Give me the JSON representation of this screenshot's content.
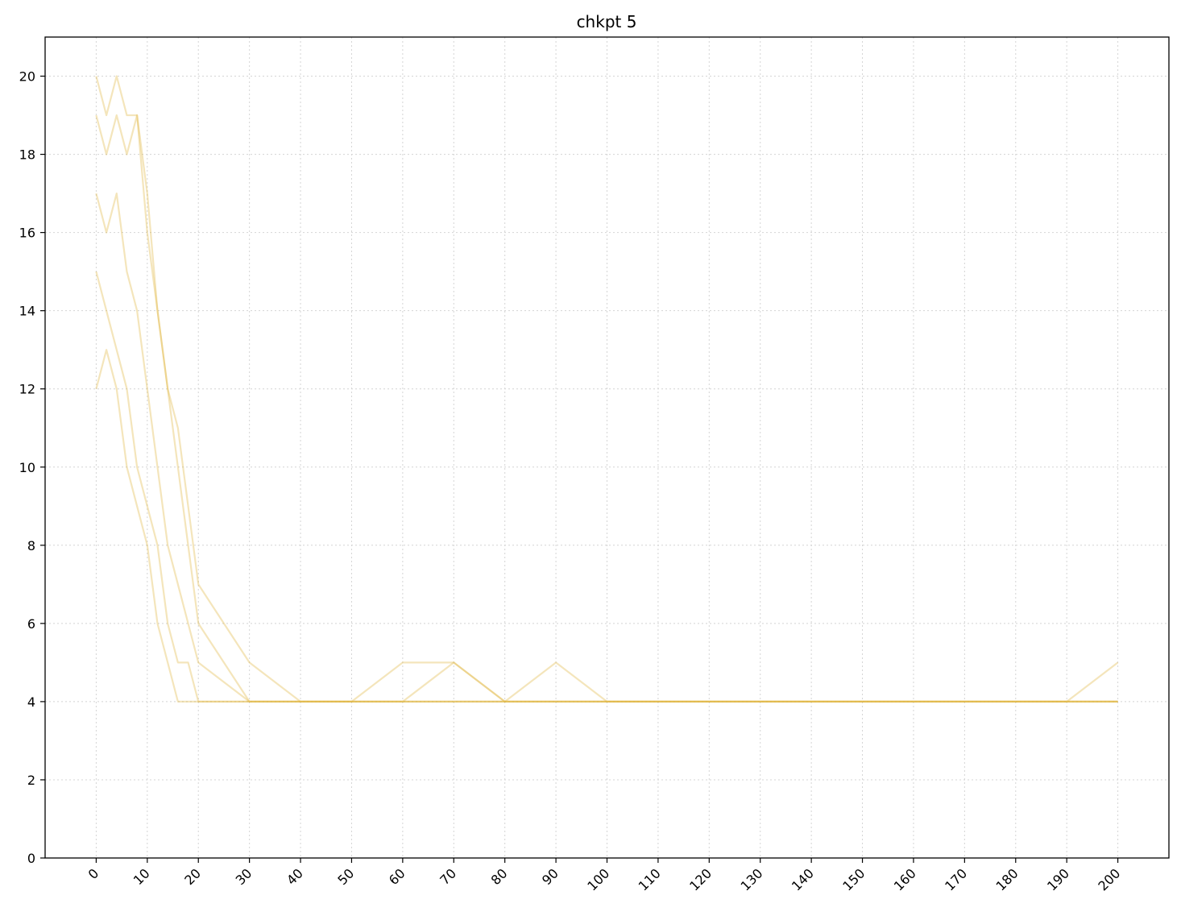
{
  "chart_data": {
    "type": "line",
    "title": "chkpt 5",
    "xlabel": "",
    "ylabel": "",
    "xlim": [
      -10,
      210
    ],
    "ylim": [
      0,
      21
    ],
    "x_ticks": [
      0,
      10,
      20,
      30,
      40,
      50,
      60,
      70,
      80,
      90,
      100,
      110,
      120,
      130,
      140,
      150,
      160,
      170,
      180,
      190,
      200
    ],
    "y_ticks": [
      0,
      2,
      4,
      6,
      8,
      10,
      12,
      14,
      16,
      18,
      20
    ],
    "grid": true,
    "legend": "none",
    "series_color": "#e0b43c",
    "series": [
      {
        "x": [
          0,
          2,
          4,
          6,
          8,
          10,
          12,
          14,
          16,
          18,
          20,
          30,
          40,
          50,
          60,
          70,
          80,
          90,
          100,
          110,
          120,
          130,
          140,
          150,
          160,
          170,
          180,
          190,
          200
        ],
        "values": [
          20,
          19,
          20,
          19,
          19,
          17,
          14,
          12,
          10,
          8,
          6,
          4,
          4,
          4,
          4,
          5,
          4,
          4,
          4,
          4,
          4,
          4,
          4,
          4,
          4,
          4,
          4,
          4,
          4
        ]
      },
      {
        "x": [
          0,
          2,
          4,
          6,
          8,
          10,
          12,
          14,
          16,
          18,
          20,
          30,
          40,
          50,
          60,
          70,
          80,
          90,
          100,
          110,
          120,
          130,
          140,
          150,
          160,
          170,
          180,
          190,
          200
        ],
        "values": [
          19,
          18,
          19,
          18,
          19,
          16,
          14,
          12,
          11,
          9,
          7,
          5,
          4,
          4,
          5,
          5,
          4,
          5,
          4,
          4,
          4,
          4,
          4,
          4,
          4,
          4,
          4,
          4,
          5
        ]
      },
      {
        "x": [
          0,
          2,
          4,
          6,
          8,
          10,
          12,
          14,
          16,
          18,
          20,
          30,
          40,
          50,
          60,
          70,
          80,
          90,
          100,
          110,
          120,
          130,
          140,
          150,
          160,
          170,
          180,
          190,
          200
        ],
        "values": [
          17,
          16,
          17,
          15,
          14,
          12,
          10,
          8,
          7,
          6,
          5,
          4,
          4,
          4,
          4,
          4,
          4,
          4,
          4,
          4,
          4,
          4,
          4,
          4,
          4,
          4,
          4,
          4,
          4
        ]
      },
      {
        "x": [
          0,
          2,
          4,
          6,
          8,
          10,
          12,
          14,
          16,
          18,
          20,
          30,
          40,
          50,
          60,
          70,
          80,
          90,
          100,
          110,
          120,
          130,
          140,
          150,
          160,
          170,
          180,
          190,
          200
        ],
        "values": [
          15,
          14,
          13,
          12,
          10,
          9,
          8,
          6,
          5,
          5,
          4,
          4,
          4,
          4,
          4,
          4,
          4,
          4,
          4,
          4,
          4,
          4,
          4,
          4,
          4,
          4,
          4,
          4,
          4
        ]
      },
      {
        "x": [
          0,
          2,
          4,
          6,
          8,
          10,
          12,
          14,
          16,
          18,
          20,
          30,
          40,
          50,
          60,
          70,
          80,
          90,
          100,
          110,
          120,
          130,
          140,
          150,
          160,
          170,
          180,
          190,
          200
        ],
        "values": [
          12,
          13,
          12,
          10,
          9,
          8,
          6,
          5,
          4,
          4,
          4,
          4,
          4,
          4,
          4,
          4,
          4,
          4,
          4,
          4,
          4,
          4,
          4,
          4,
          4,
          4,
          4,
          4,
          4
        ]
      }
    ]
  }
}
